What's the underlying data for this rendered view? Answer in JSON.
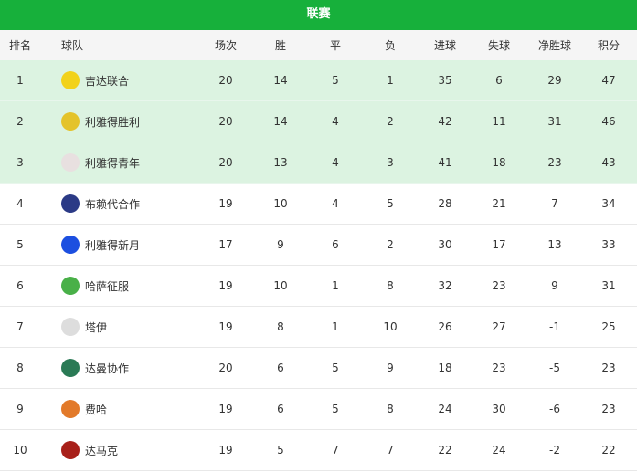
{
  "title": "联赛",
  "headers": [
    "排名",
    "球队",
    "场次",
    "胜",
    "平",
    "负",
    "进球",
    "失球",
    "净胜球",
    "积分"
  ],
  "rows": [
    {
      "rank": "1",
      "team": "吉达联合",
      "logo": "al-ittihad-logo",
      "color": "#f2d21b",
      "p": "20",
      "w": "14",
      "d": "5",
      "l": "1",
      "gf": "35",
      "ga": "6",
      "gd": "29",
      "pts": "47"
    },
    {
      "rank": "2",
      "team": "利雅得胜利",
      "logo": "al-nassr-logo",
      "color": "#e4c32a",
      "p": "20",
      "w": "14",
      "d": "4",
      "l": "2",
      "gf": "42",
      "ga": "11",
      "gd": "31",
      "pts": "46"
    },
    {
      "rank": "3",
      "team": "利雅得青年",
      "logo": "al-shabab-logo",
      "color": "#e8e0e0",
      "p": "20",
      "w": "13",
      "d": "4",
      "l": "3",
      "gf": "41",
      "ga": "18",
      "gd": "23",
      "pts": "43"
    },
    {
      "rank": "4",
      "team": "布赖代合作",
      "logo": "al-taawoun-logo",
      "color": "#2b3a86",
      "p": "19",
      "w": "10",
      "d": "4",
      "l": "5",
      "gf": "28",
      "ga": "21",
      "gd": "7",
      "pts": "34"
    },
    {
      "rank": "5",
      "team": "利雅得新月",
      "logo": "al-hilal-logo",
      "color": "#1c4fe0",
      "p": "17",
      "w": "9",
      "d": "6",
      "l": "2",
      "gf": "30",
      "ga": "17",
      "gd": "13",
      "pts": "33"
    },
    {
      "rank": "6",
      "team": "哈萨征服",
      "logo": "al-fateh-logo",
      "color": "#49b048",
      "p": "19",
      "w": "10",
      "d": "1",
      "l": "8",
      "gf": "32",
      "ga": "23",
      "gd": "9",
      "pts": "31"
    },
    {
      "rank": "7",
      "team": "塔伊",
      "logo": "al-tai-logo",
      "color": "#dddddd",
      "p": "19",
      "w": "8",
      "d": "1",
      "l": "10",
      "gf": "26",
      "ga": "27",
      "gd": "-1",
      "pts": "25"
    },
    {
      "rank": "8",
      "team": "达曼协作",
      "logo": "al-ettifaq-logo",
      "color": "#2a7a55",
      "p": "20",
      "w": "6",
      "d": "5",
      "l": "9",
      "gf": "18",
      "ga": "23",
      "gd": "-5",
      "pts": "23"
    },
    {
      "rank": "9",
      "team": "费哈",
      "logo": "al-feiha-logo",
      "color": "#e27a2a",
      "p": "19",
      "w": "6",
      "d": "5",
      "l": "8",
      "gf": "24",
      "ga": "30",
      "gd": "-6",
      "pts": "23"
    },
    {
      "rank": "10",
      "team": "达马克",
      "logo": "damac-logo",
      "color": "#a8201a",
      "p": "19",
      "w": "5",
      "d": "7",
      "l": "7",
      "gf": "22",
      "ga": "24",
      "gd": "-2",
      "pts": "22"
    }
  ]
}
